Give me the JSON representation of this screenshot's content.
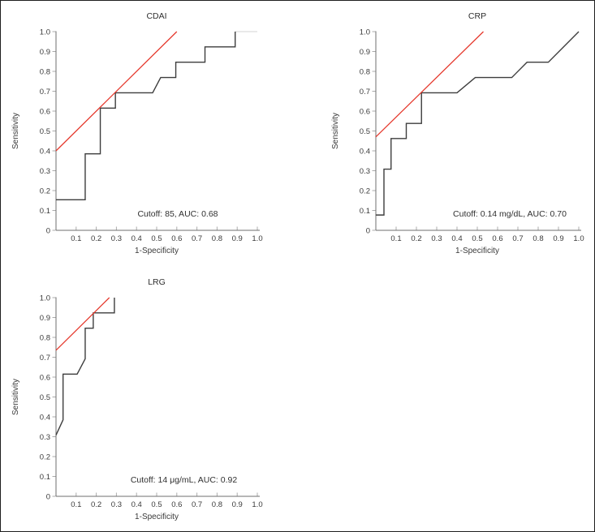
{
  "figure": {
    "background": "#ffffff",
    "border_color": "#1f1f1f"
  },
  "colors": {
    "curve": "#3d3d3d",
    "curve_faint": "#dcdcdc",
    "reference": "#e5372b",
    "axis": "#6f6f6f",
    "tick": "#ababab",
    "text": "#3a3a3a",
    "title_text": "#2f2f2f"
  },
  "chart_data": [
    {
      "type": "line",
      "kind": "roc-curve",
      "title": "CDAI",
      "xlabel": "1-Specificity",
      "ylabel": "Sensitivity",
      "annotation": "Cutoff: 85, AUC: 0.68",
      "cutoff": "85",
      "auc": 0.68,
      "xlim": [
        0,
        1
      ],
      "ylim": [
        0,
        1
      ],
      "grid": false,
      "xticks": [
        "0.1",
        "0.2",
        "0.3",
        "0.4",
        "0.5",
        "0.6",
        "0.7",
        "0.8",
        "0.9",
        "1.0"
      ],
      "yticks": [
        "0",
        "0.1",
        "0.2",
        "0.3",
        "0.4",
        "0.5",
        "0.6",
        "0.7",
        "0.8",
        "0.9",
        "1.0"
      ],
      "roc_points": [
        [
          0,
          0.154
        ],
        [
          0.145,
          0.154
        ],
        [
          0.145,
          0.385
        ],
        [
          0.22,
          0.385
        ],
        [
          0.22,
          0.615
        ],
        [
          0.295,
          0.615
        ],
        [
          0.295,
          0.692
        ],
        [
          0.48,
          0.692
        ],
        [
          0.52,
          0.769
        ],
        [
          0.595,
          0.769
        ],
        [
          0.595,
          0.846
        ],
        [
          0.74,
          0.846
        ],
        [
          0.74,
          0.923
        ],
        [
          0.89,
          0.923
        ],
        [
          0.89,
          1.0
        ]
      ],
      "faint_segment": [
        [
          0.89,
          1.0
        ],
        [
          1.0,
          1.0
        ]
      ],
      "reference_line": [
        [
          0,
          0.4
        ],
        [
          0.6,
          1.0
        ]
      ]
    },
    {
      "type": "line",
      "kind": "roc-curve",
      "title": "CRP",
      "xlabel": "1-Specificity",
      "ylabel": "Sensitivity",
      "annotation": "Cutoff: 0.14 mg/dL, AUC: 0.70",
      "cutoff": "0.14 mg/dL",
      "auc": 0.7,
      "xlim": [
        0,
        1
      ],
      "ylim": [
        0,
        1
      ],
      "grid": false,
      "xticks": [
        "0.1",
        "0.2",
        "0.3",
        "0.4",
        "0.5",
        "0.6",
        "0.7",
        "0.8",
        "0.9",
        "1.0"
      ],
      "yticks": [
        "0",
        "0.1",
        "0.2",
        "0.3",
        "0.4",
        "0.5",
        "0.6",
        "0.7",
        "0.8",
        "0.9",
        "1.0"
      ],
      "roc_points": [
        [
          0,
          0.077
        ],
        [
          0.04,
          0.077
        ],
        [
          0.04,
          0.308
        ],
        [
          0.075,
          0.308
        ],
        [
          0.075,
          0.462
        ],
        [
          0.15,
          0.462
        ],
        [
          0.15,
          0.538
        ],
        [
          0.225,
          0.538
        ],
        [
          0.225,
          0.692
        ],
        [
          0.4,
          0.692
        ],
        [
          0.49,
          0.769
        ],
        [
          0.67,
          0.769
        ],
        [
          0.745,
          0.846
        ],
        [
          0.85,
          0.846
        ],
        [
          1.0,
          1.0
        ]
      ],
      "faint_segment": [],
      "reference_line": [
        [
          0,
          0.47
        ],
        [
          0.53,
          1.0
        ]
      ]
    },
    {
      "type": "line",
      "kind": "roc-curve",
      "title": "LRG",
      "xlabel": "1-Specificity",
      "ylabel": "Sensitivity",
      "annotation": "Cutoff: 14 μg/mL, AUC: 0.92",
      "cutoff": "14 μg/mL",
      "auc": 0.92,
      "xlim": [
        0,
        1
      ],
      "ylim": [
        0,
        1
      ],
      "grid": false,
      "xticks": [
        "0.1",
        "0.2",
        "0.3",
        "0.4",
        "0.5",
        "0.6",
        "0.7",
        "0.8",
        "0.9",
        "1.0"
      ],
      "yticks": [
        "0",
        "0.1",
        "0.2",
        "0.3",
        "0.4",
        "0.5",
        "0.6",
        "0.7",
        "0.8",
        "0.9",
        "1.0"
      ],
      "roc_points": [
        [
          0,
          0.308
        ],
        [
          0.035,
          0.385
        ],
        [
          0.035,
          0.615
        ],
        [
          0.105,
          0.615
        ],
        [
          0.145,
          0.692
        ],
        [
          0.145,
          0.846
        ],
        [
          0.185,
          0.846
        ],
        [
          0.185,
          0.923
        ],
        [
          0.29,
          0.923
        ],
        [
          0.29,
          1.0
        ]
      ],
      "faint_segment": [],
      "reference_line": [
        [
          0,
          0.735
        ],
        [
          0.265,
          1.0
        ]
      ]
    }
  ]
}
